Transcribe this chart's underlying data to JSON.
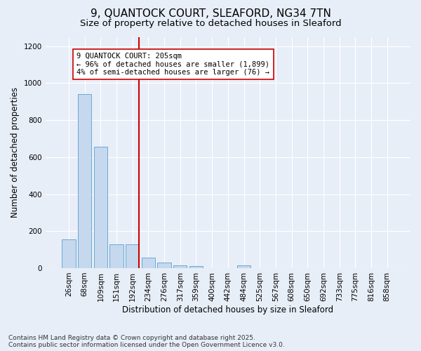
{
  "title": "9, QUANTOCK COURT, SLEAFORD, NG34 7TN",
  "subtitle": "Size of property relative to detached houses in Sleaford",
  "xlabel": "Distribution of detached houses by size in Sleaford",
  "ylabel": "Number of detached properties",
  "footnote1": "Contains HM Land Registry data © Crown copyright and database right 2025.",
  "footnote2": "Contains public sector information licensed under the Open Government Licence v3.0.",
  "categories": [
    "26sqm",
    "68sqm",
    "109sqm",
    "151sqm",
    "192sqm",
    "234sqm",
    "276sqm",
    "317sqm",
    "359sqm",
    "400sqm",
    "442sqm",
    "484sqm",
    "525sqm",
    "567sqm",
    "608sqm",
    "650sqm",
    "692sqm",
    "733sqm",
    "775sqm",
    "816sqm",
    "858sqm"
  ],
  "values": [
    155,
    940,
    655,
    130,
    130,
    58,
    30,
    15,
    10,
    0,
    0,
    15,
    0,
    0,
    0,
    0,
    0,
    0,
    0,
    0,
    0
  ],
  "bar_color": "#c5d8ed",
  "bar_edge_color": "#6aaad4",
  "vline_x_idx": 4.42,
  "vline_color": "#cc0000",
  "annotation_text": "9 QUANTOCK COURT: 205sqm\n← 96% of detached houses are smaller (1,899)\n4% of semi-detached houses are larger (76) →",
  "annotation_box_color": "#ffffff",
  "annotation_box_edge": "#cc0000",
  "ylim": [
    0,
    1250
  ],
  "yticks": [
    0,
    200,
    400,
    600,
    800,
    1000,
    1200
  ],
  "bg_color": "#e8eef8",
  "plot_bg_color": "#e8eef8",
  "title_fontsize": 11,
  "subtitle_fontsize": 9.5,
  "axis_label_fontsize": 8.5,
  "tick_fontsize": 7.5,
  "annotation_fontsize": 7.5,
  "footnote_fontsize": 6.5
}
